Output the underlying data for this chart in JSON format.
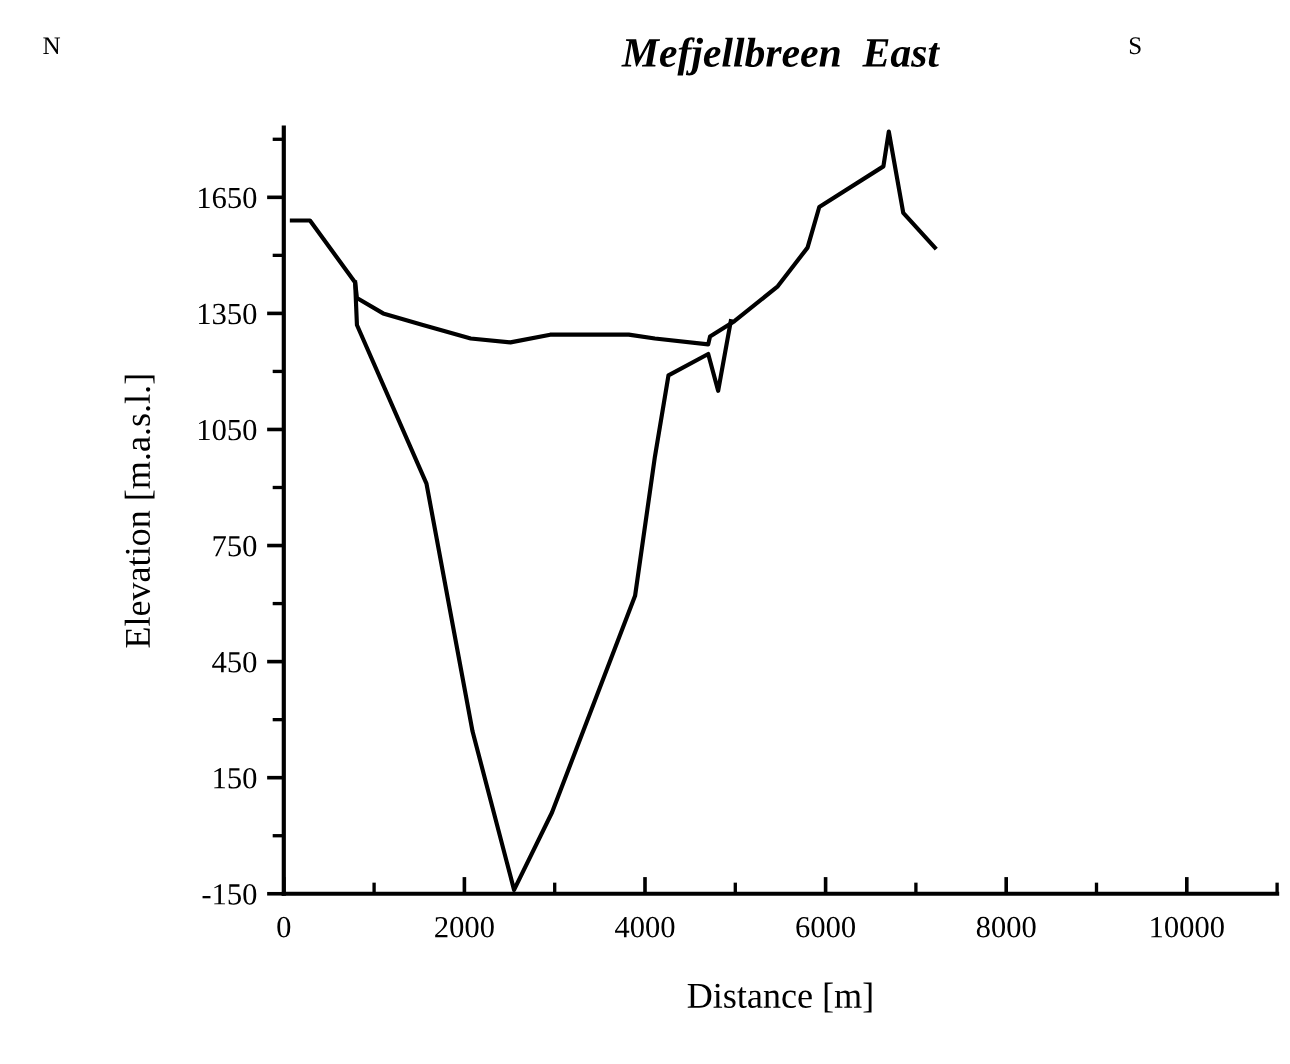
{
  "chart_data": {
    "type": "line",
    "title": "Mefjellbreen  East",
    "xlabel": "Distance [m]",
    "ylabel": "Elevation [m.a.s.l.]",
    "annotations": [
      "N",
      "S"
    ],
    "xlim": [
      0,
      11000
    ],
    "xticks": [
      0,
      2000,
      4000,
      6000,
      8000,
      10000
    ],
    "ylim": [
      -150,
      1830
    ],
    "yticks": [
      -150,
      150,
      450,
      750,
      1050,
      1350,
      1650
    ],
    "grid": false,
    "legend": false,
    "marker": "none",
    "line_style": "solid",
    "series": [
      {
        "color": "#000000",
        "x": [
          90,
          290,
          790,
          810,
          1100,
          1540,
          2070,
          2510,
          2950,
          3820,
          4110,
          4700,
          4720,
          4990,
          5470,
          5800,
          5930,
          6640,
          6700,
          6860,
          7210
        ],
        "values": [
          1590,
          1590,
          1430,
          1390,
          1350,
          1320,
          1285,
          1275,
          1295,
          1295,
          1285,
          1270,
          1290,
          1330,
          1420,
          1520,
          1625,
          1730,
          1820,
          1610,
          1520
        ]
      },
      {
        "color": "#000000",
        "x": [
          790,
          810,
          1580,
          2090,
          2550,
          2970,
          3890,
          4110,
          4260,
          4700,
          4810,
          4950
        ],
        "values": [
          1430,
          1320,
          910,
          270,
          -140,
          60,
          620,
          980,
          1190,
          1245,
          1150,
          1330
        ]
      }
    ]
  }
}
